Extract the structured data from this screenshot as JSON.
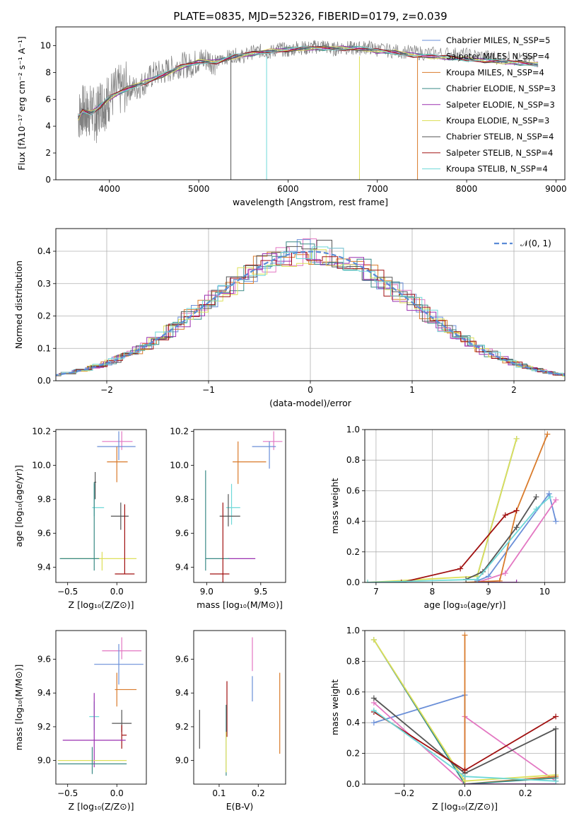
{
  "title": "PLATE=0835, MJD=52326, FIBERID=0179, z=0.039",
  "chart_data": [
    {
      "id": "spectrum",
      "type": "line",
      "xlabel": "wavelength [Angstrom, rest frame]",
      "ylabel": "Flux [fλ10⁻¹⁷ erg cm⁻² s⁻¹ A⁻¹]",
      "xlim": [
        3400,
        9100
      ],
      "ylim": [
        0,
        11.4
      ],
      "xticks": [
        4000,
        5000,
        6000,
        7000,
        8000,
        9000
      ],
      "yticks": [
        0,
        2,
        4,
        6,
        8,
        10
      ],
      "grid": false,
      "legend_position": "right",
      "data_curve": {
        "color": "#808080",
        "x": [
          3650,
          3700,
          3750,
          3800,
          3850,
          3900,
          3950,
          4000,
          4100,
          4200,
          4300,
          4400,
          4500,
          4600,
          4700,
          4800,
          4900,
          5000,
          5100,
          5200,
          5300,
          5400,
          5500,
          5600,
          5700,
          5800,
          5900,
          6000,
          6100,
          6200,
          6300,
          6400,
          6500,
          6600,
          6700,
          6800,
          6900,
          7000,
          7200,
          7400,
          7600,
          7800,
          8000,
          8200,
          8400,
          8600,
          8800
        ],
        "y": [
          4.7,
          5.2,
          4.9,
          5.3,
          4.6,
          5.8,
          5.6,
          6.2,
          6.6,
          6.9,
          6.8,
          7.3,
          7.9,
          8.0,
          8.3,
          8.6,
          8.5,
          8.9,
          9.0,
          8.7,
          9.1,
          9.3,
          9.2,
          9.5,
          9.6,
          9.5,
          9.8,
          9.6,
          9.9,
          9.8,
          9.9,
          10.0,
          9.7,
          9.9,
          9.8,
          9.8,
          9.9,
          9.7,
          9.6,
          9.5,
          9.4,
          9.4,
          9.3,
          9.2,
          9.1,
          9.0,
          8.9
        ]
      },
      "series": [
        {
          "name": "Chabrier MILES, N_SSP=5",
          "color": "#6a8fd8"
        },
        {
          "name": "Salpeter MILES, N_SSP=4",
          "color": "#e377c2"
        },
        {
          "name": "Kroupa MILES, N_SSP=4",
          "color": "#d97b2b"
        },
        {
          "name": "Chabrier ELODIE, N_SSP=3",
          "color": "#3a8a86"
        },
        {
          "name": "Salpeter ELODIE, N_SSP=3",
          "color": "#9b30b0"
        },
        {
          "name": "Kroupa ELODIE, N_SSP=3",
          "color": "#dde05a"
        },
        {
          "name": "Chabrier STELIB, N_SSP=4",
          "color": "#555555"
        },
        {
          "name": "Salpeter STELIB, N_SSP=4",
          "color": "#a01010"
        },
        {
          "name": "Kroupa STELIB, N_SSP=4",
          "color": "#6ed8d8"
        }
      ],
      "model_curve": {
        "x": [
          3650,
          3700,
          3800,
          3900,
          4000,
          4200,
          4400,
          4600,
          4800,
          5000,
          5200,
          5400,
          5600,
          5800,
          6000,
          6200,
          6400,
          6600,
          6800,
          7000,
          7200,
          7400,
          7600,
          7800,
          8000,
          8200,
          8400,
          8600,
          8800
        ],
        "y": [
          4.6,
          5.1,
          5.0,
          5.5,
          6.1,
          6.8,
          7.3,
          7.8,
          8.4,
          8.8,
          8.8,
          9.2,
          9.4,
          9.6,
          9.7,
          9.8,
          9.8,
          9.8,
          9.8,
          9.6,
          9.5,
          9.3,
          9.2,
          9.1,
          9.0,
          8.9,
          8.8,
          8.7,
          8.6
        ]
      }
    },
    {
      "id": "residuals",
      "type": "histogram",
      "xlabel": "(data-model)/error",
      "ylabel": "Normed distribution",
      "xlim": [
        -2.5,
        2.5
      ],
      "ylim": [
        0,
        0.47
      ],
      "xticks": [
        -2,
        -1,
        0,
        1,
        2
      ],
      "yticks": [
        0.0,
        0.1,
        0.2,
        0.3,
        0.4
      ],
      "grid": true,
      "legend_position": "top-right",
      "legend": "𝒩(0, 1)",
      "gaussian_color": "#5b8bd6"
    },
    {
      "id": "age_vs_Z",
      "type": "errorbar",
      "xlabel": "Z [log₁₀(Z/Z⊙)]",
      "ylabel": "age  [log₁₀(age/yr)]",
      "xlim": [
        -0.62,
        0.3
      ],
      "ylim": [
        9.31,
        10.21
      ],
      "xticks": [
        -0.5,
        0.0
      ],
      "yticks": [
        9.4,
        9.6,
        9.8,
        10.0,
        10.2
      ],
      "points": [
        {
          "x": 0.05,
          "y": 10.14,
          "xerr": [
            0.2,
            0.11
          ],
          "yerr": [
            0.05,
            0.06
          ],
          "color": "#e377c2"
        },
        {
          "x": 0.02,
          "y": 10.11,
          "xerr": [
            0.22,
            0.17
          ],
          "yerr": [
            0.08,
            0.09
          ],
          "color": "#6a8fd8"
        },
        {
          "x": 0.0,
          "y": 10.02,
          "xerr": [
            0.1,
            0.11
          ],
          "yerr": [
            0.12,
            0.09
          ],
          "color": "#d97b2b"
        },
        {
          "x": -0.22,
          "y": 9.9,
          "xerr": [
            0.01,
            0.01
          ],
          "yerr": [
            0.1,
            0.06
          ],
          "color": "#555555"
        },
        {
          "x": -0.23,
          "y": 9.75,
          "xerr": [
            0.02,
            0.1
          ],
          "yerr": [
            0.05,
            0.14
          ],
          "color": "#6ed8d8"
        },
        {
          "x": 0.04,
          "y": 9.7,
          "xerr": [
            0.1,
            0.08
          ],
          "yerr": [
            0.08,
            0.08
          ],
          "color": "#555555"
        },
        {
          "x": -0.15,
          "y": 9.45,
          "xerr": [
            0.42,
            0.35
          ],
          "yerr": [
            0.07,
            0.04
          ],
          "color": "#dde05a"
        },
        {
          "x": -0.23,
          "y": 9.45,
          "xerr": [
            0.35,
            0.05
          ],
          "yerr": [
            0.07,
            0.45
          ],
          "color": "#3a8a86"
        },
        {
          "x": 0.08,
          "y": 9.36,
          "xerr": [
            0.1,
            0.1
          ],
          "yerr": [
            0.0,
            0.41
          ],
          "color": "#a01010"
        }
      ]
    },
    {
      "id": "age_vs_mass",
      "type": "errorbar",
      "xlabel": "mass [log₁₀(M/M⊙)]",
      "ylabel": "",
      "xlim": [
        8.88,
        9.73
      ],
      "ylim": [
        9.31,
        10.21
      ],
      "xticks": [
        9.0,
        9.5
      ],
      "yticks": [
        9.4,
        9.6,
        9.8,
        10.0,
        10.2
      ],
      "points": [
        {
          "x": 9.62,
          "y": 10.14,
          "xerr": [
            0.1,
            0.08
          ],
          "yerr": [
            0.05,
            0.06
          ],
          "color": "#e377c2"
        },
        {
          "x": 9.58,
          "y": 10.11,
          "xerr": [
            0.16,
            0.06
          ],
          "yerr": [
            0.13,
            0.03
          ],
          "color": "#6a8fd8"
        },
        {
          "x": 9.29,
          "y": 10.02,
          "xerr": [
            0.05,
            0.26
          ],
          "yerr": [
            0.13,
            0.12
          ],
          "color": "#d97b2b"
        },
        {
          "x": 9.23,
          "y": 9.75,
          "xerr": [
            0.05,
            0.08
          ],
          "yerr": [
            0.1,
            0.14
          ],
          "color": "#6ed8d8"
        },
        {
          "x": 9.2,
          "y": 9.7,
          "xerr": [
            0.08,
            0.11
          ],
          "yerr": [
            0.06,
            0.13
          ],
          "color": "#555555"
        },
        {
          "x": 9.2,
          "y": 9.45,
          "xerr": [
            0.0,
            0.25
          ],
          "yerr": [
            0.0,
            0.0
          ],
          "color": "#9b30b0"
        },
        {
          "x": 8.99,
          "y": 9.45,
          "xerr": [
            0.0,
            0.22
          ],
          "yerr": [
            0.07,
            0.52
          ],
          "color": "#3a8a86"
        },
        {
          "x": 9.15,
          "y": 9.36,
          "xerr": [
            0.12,
            0.06
          ],
          "yerr": [
            0.05,
            0.42
          ],
          "color": "#a01010"
        }
      ]
    },
    {
      "id": "mass_weight_vs_age",
      "type": "line",
      "xlabel": "age  [log₁₀(age/yr)]",
      "ylabel": "mass weight",
      "xlim": [
        6.8,
        10.36
      ],
      "ylim": [
        0,
        1.0
      ],
      "xticks": [
        7,
        8,
        9,
        10
      ],
      "yticks": [
        0.0,
        0.2,
        0.4,
        0.6,
        0.8,
        1.0
      ],
      "grid": true,
      "series": [
        {
          "color": "#6a8fd8",
          "x": [
            8.8,
            9.0,
            10.08,
            10.2
          ],
          "y": [
            0.01,
            0.04,
            0.58,
            0.4
          ]
        },
        {
          "color": "#e377c2",
          "x": [
            8.8,
            9.3,
            10.2
          ],
          "y": [
            0.0,
            0.06,
            0.54
          ]
        },
        {
          "color": "#d97b2b",
          "x": [
            8.6,
            9.2,
            9.5,
            10.05
          ],
          "y": [
            0.0,
            0.01,
            0.47,
            0.97
          ]
        },
        {
          "color": "#3a8a86",
          "x": [
            8.8,
            9.5
          ],
          "y": [
            0.04,
            0.94
          ]
        },
        {
          "color": "#9b30b0",
          "x": [
            8.8,
            9.5
          ],
          "y": [
            0.0,
            0.0
          ]
        },
        {
          "color": "#dde05a",
          "x": [
            6.85,
            8.8,
            9.5
          ],
          "y": [
            0.0,
            0.04,
            0.94
          ]
        },
        {
          "color": "#555555",
          "x": [
            8.6,
            8.9,
            9.5,
            9.85
          ],
          "y": [
            0.02,
            0.07,
            0.36,
            0.56
          ]
        },
        {
          "color": "#a01010",
          "x": [
            7.45,
            8.5,
            9.3,
            9.5
          ],
          "y": [
            0.0,
            0.09,
            0.44,
            0.47
          ]
        },
        {
          "color": "#6ed8d8",
          "x": [
            6.85,
            8.8,
            9.85,
            10.1
          ],
          "y": [
            0.0,
            0.02,
            0.48,
            0.56
          ]
        }
      ]
    },
    {
      "id": "mass_vs_Z",
      "type": "errorbar",
      "xlabel": "Z [log₁₀(Z/Z⊙)]",
      "ylabel": "mass [log₁₀(M/M⊙)]",
      "xlim": [
        -0.62,
        0.3
      ],
      "ylim": [
        8.86,
        9.77
      ],
      "xticks": [
        -0.5,
        0.0
      ],
      "yticks": [
        9.0,
        9.2,
        9.4,
        9.6
      ],
      "points": [
        {
          "x": 0.05,
          "y": 9.65,
          "xerr": [
            0.2,
            0.2
          ],
          "yerr": [
            0.05,
            0.08
          ],
          "color": "#e377c2"
        },
        {
          "x": 0.02,
          "y": 9.57,
          "xerr": [
            0.25,
            0.25
          ],
          "yerr": [
            0.12,
            0.12
          ],
          "color": "#6a8fd8"
        },
        {
          "x": 0.0,
          "y": 9.42,
          "xerr": [
            0.02,
            0.2
          ],
          "yerr": [
            0.1,
            0.1
          ],
          "color": "#d97b2b"
        },
        {
          "x": -0.23,
          "y": 9.26,
          "xerr": [
            0.05,
            0.05
          ],
          "yerr": [
            0.08,
            0.09
          ],
          "color": "#6ed8d8"
        },
        {
          "x": 0.05,
          "y": 9.22,
          "xerr": [
            0.1,
            0.1
          ],
          "yerr": [
            0.05,
            0.08
          ],
          "color": "#555555"
        },
        {
          "x": 0.05,
          "y": 9.15,
          "xerr": [
            0.0,
            0.05
          ],
          "yerr": [
            0.08,
            0.06
          ],
          "color": "#a01010"
        },
        {
          "x": -0.23,
          "y": 9.12,
          "xerr": [
            0.32,
            0.32
          ],
          "yerr": [
            0.16,
            0.28
          ],
          "color": "#9b30b0"
        },
        {
          "x": -0.25,
          "y": 9.0,
          "xerr": [
            0.35,
            0.35
          ],
          "yerr": [
            0.0,
            0.0
          ],
          "color": "#dde05a"
        },
        {
          "x": -0.25,
          "y": 8.98,
          "xerr": [
            0.35,
            0.35
          ],
          "yerr": [
            0.06,
            0.1
          ],
          "color": "#3a8a86"
        }
      ]
    },
    {
      "id": "mass_vs_EBV",
      "type": "errorbar",
      "xlabel": "E(B-V)",
      "ylabel": "",
      "xlim": [
        0.035,
        0.27
      ],
      "ylim": [
        8.86,
        9.77
      ],
      "xticks": [
        0.1,
        0.2
      ],
      "yticks": [
        9.0,
        9.2,
        9.4,
        9.6
      ],
      "points": [
        {
          "x": 0.185,
          "y": 9.6,
          "xerr": [
            0,
            0
          ],
          "yerr": [
            0.07,
            0.13
          ],
          "color": "#e377c2"
        },
        {
          "x": 0.185,
          "y": 9.45,
          "xerr": [
            0,
            0
          ],
          "yerr": [
            0.1,
            0.05
          ],
          "color": "#6a8fd8"
        },
        {
          "x": 0.255,
          "y": 9.28,
          "xerr": [
            0,
            0
          ],
          "yerr": [
            0.24,
            0.24
          ],
          "color": "#d97b2b"
        },
        {
          "x": 0.05,
          "y": 9.19,
          "xerr": [
            0,
            0
          ],
          "yerr": [
            0.12,
            0.11
          ],
          "color": "#555555"
        },
        {
          "x": 0.12,
          "y": 9.3,
          "xerr": [
            0,
            0
          ],
          "yerr": [
            0.16,
            0.17
          ],
          "color": "#a01010"
        },
        {
          "x": 0.118,
          "y": 9.12,
          "xerr": [
            0,
            0
          ],
          "yerr": [
            0.21,
            0.21
          ],
          "color": "#3a8a86"
        },
        {
          "x": 0.118,
          "y": 9.05,
          "xerr": [
            0,
            0
          ],
          "yerr": [
            0.12,
            0.12
          ],
          "color": "#dde05a"
        }
      ]
    },
    {
      "id": "mass_weight_vs_Z",
      "type": "line",
      "xlabel": "Z [log₁₀(Z/Z⊙)]",
      "ylabel": "mass weight",
      "xlim": [
        -0.33,
        0.33
      ],
      "ylim": [
        0,
        1.0
      ],
      "xticks": [
        -0.2,
        0.0,
        0.2
      ],
      "yticks": [
        0.0,
        0.2,
        0.4,
        0.6,
        0.8,
        1.0
      ],
      "grid": true,
      "series": [
        {
          "color": "#6a8fd8",
          "x": [
            -0.3,
            0.0,
            0.0
          ],
          "y": [
            0.4,
            0.58,
            0.0
          ]
        },
        {
          "color": "#e377c2",
          "x": [
            -0.3,
            0.0,
            0.0,
            0.3
          ],
          "y": [
            0.53,
            0.0,
            0.44,
            0.02
          ]
        },
        {
          "color": "#d97b2b",
          "x": [
            0.0,
            0.0,
            0.3
          ],
          "y": [
            0.97,
            0.0,
            0.05
          ]
        },
        {
          "color": "#3a8a86",
          "x": [
            -0.3,
            0.0,
            0.3
          ],
          "y": [
            0.94,
            0.0,
            0.04
          ]
        },
        {
          "color": "#9b30b0",
          "x": [
            0.0,
            0.3
          ],
          "y": [
            0.0,
            0.0
          ]
        },
        {
          "color": "#dde05a",
          "x": [
            -0.3,
            0.0,
            0.3
          ],
          "y": [
            0.94,
            0.02,
            0.06
          ]
        },
        {
          "color": "#555555",
          "x": [
            -0.3,
            0.0,
            0.3,
            0.3
          ],
          "y": [
            0.56,
            0.07,
            0.36,
            0.02
          ]
        },
        {
          "color": "#a01010",
          "x": [
            -0.3,
            0.0,
            0.3
          ],
          "y": [
            0.47,
            0.09,
            0.44
          ]
        },
        {
          "color": "#6ed8d8",
          "x": [
            -0.3,
            0.0,
            0.3
          ],
          "y": [
            0.48,
            0.05,
            0.02
          ]
        }
      ]
    }
  ]
}
